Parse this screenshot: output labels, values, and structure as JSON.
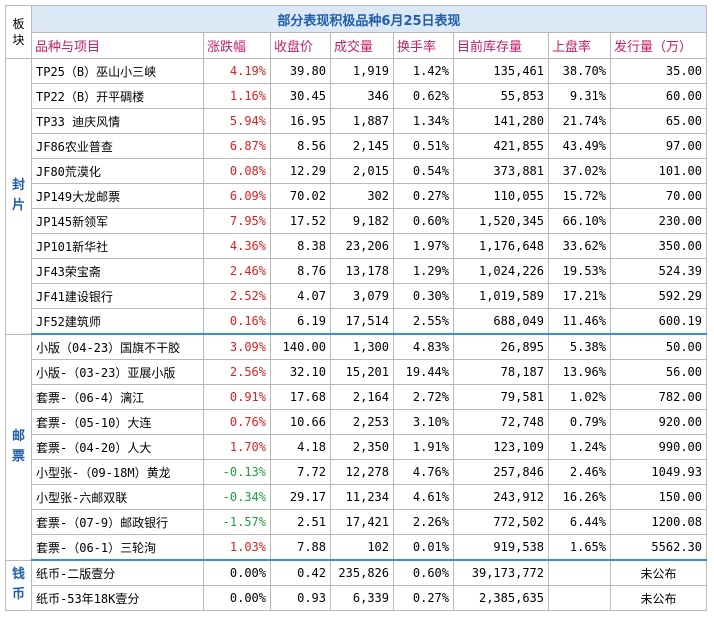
{
  "title": "部分表现积极品种6月25日表现",
  "corner_label": "板块",
  "headers": [
    "品种与项目",
    "涨跌幅",
    "收盘价",
    "成交量",
    "换手率",
    "目前库存量",
    "上盘率",
    "发行量（万）"
  ],
  "colors": {
    "up": "#e02020",
    "down": "#20a040",
    "flat": "#000000",
    "header_text": "#c0206a",
    "title_text": "#1f5fa8",
    "divider": "#3a8fd0"
  },
  "groups": [
    {
      "label": "封片",
      "rows": [
        {
          "name": "TP25（B）巫山小三峡",
          "change": "4.19%",
          "dir": "up",
          "close": "39.80",
          "volume": "1,919",
          "turnover": "1.42%",
          "stock": "135,461",
          "listing_rate": "38.70%",
          "issue": "35.00"
        },
        {
          "name": "TP22（B）开平碉楼",
          "change": "1.16%",
          "dir": "up",
          "close": "30.45",
          "volume": "346",
          "turnover": "0.62%",
          "stock": "55,853",
          "listing_rate": "9.31%",
          "issue": "60.00"
        },
        {
          "name": "TP33 迪庆风情",
          "change": "5.94%",
          "dir": "up",
          "close": "16.95",
          "volume": "1,887",
          "turnover": "1.34%",
          "stock": "141,280",
          "listing_rate": "21.74%",
          "issue": "65.00"
        },
        {
          "name": "JF86农业普查",
          "change": "6.87%",
          "dir": "up",
          "close": "8.56",
          "volume": "2,145",
          "turnover": "0.51%",
          "stock": "421,855",
          "listing_rate": "43.49%",
          "issue": "97.00"
        },
        {
          "name": "JF80荒漠化",
          "change": "0.08%",
          "dir": "up",
          "close": "12.29",
          "volume": "2,015",
          "turnover": "0.54%",
          "stock": "373,881",
          "listing_rate": "37.02%",
          "issue": "101.00"
        },
        {
          "name": "JP149大龙邮票",
          "change": "6.09%",
          "dir": "up",
          "close": "70.02",
          "volume": "302",
          "turnover": "0.27%",
          "stock": "110,055",
          "listing_rate": "15.72%",
          "issue": "70.00"
        },
        {
          "name": "JP145新领军",
          "change": "7.95%",
          "dir": "up",
          "close": "17.52",
          "volume": "9,182",
          "turnover": "0.60%",
          "stock": "1,520,345",
          "listing_rate": "66.10%",
          "issue": "230.00"
        },
        {
          "name": "JP101新华社",
          "change": "4.36%",
          "dir": "up",
          "close": "8.38",
          "volume": "23,206",
          "turnover": "1.97%",
          "stock": "1,176,648",
          "listing_rate": "33.62%",
          "issue": "350.00"
        },
        {
          "name": "JF43荣宝斋",
          "change": "2.46%",
          "dir": "up",
          "close": "8.76",
          "volume": "13,178",
          "turnover": "1.29%",
          "stock": "1,024,226",
          "listing_rate": "19.53%",
          "issue": "524.39"
        },
        {
          "name": "JF41建设银行",
          "change": "2.52%",
          "dir": "up",
          "close": "4.07",
          "volume": "3,079",
          "turnover": "0.30%",
          "stock": "1,019,589",
          "listing_rate": "17.21%",
          "issue": "592.29"
        },
        {
          "name": "JF52建筑师",
          "change": "0.16%",
          "dir": "up",
          "close": "6.19",
          "volume": "17,514",
          "turnover": "2.55%",
          "stock": "688,049",
          "listing_rate": "11.46%",
          "issue": "600.19"
        }
      ]
    },
    {
      "label": "邮票",
      "rows": [
        {
          "name": "小版（04-23）国旗不干胶",
          "change": "3.09%",
          "dir": "up",
          "close": "140.00",
          "volume": "1,300",
          "turnover": "4.83%",
          "stock": "26,895",
          "listing_rate": "5.38%",
          "issue": "50.00"
        },
        {
          "name": "小版-（03-23）亚展小版",
          "change": "2.56%",
          "dir": "up",
          "close": "32.10",
          "volume": "15,201",
          "turnover": "19.44%",
          "stock": "78,187",
          "listing_rate": "13.96%",
          "issue": "56.00"
        },
        {
          "name": "套票-（06-4）漓江",
          "change": "0.91%",
          "dir": "up",
          "close": "17.68",
          "volume": "2,164",
          "turnover": "2.72%",
          "stock": "79,581",
          "listing_rate": "1.02%",
          "issue": "782.00"
        },
        {
          "name": "套票-（05-10）大连",
          "change": "0.76%",
          "dir": "up",
          "close": "10.66",
          "volume": "2,253",
          "turnover": "3.10%",
          "stock": "72,748",
          "listing_rate": "0.79%",
          "issue": "920.00"
        },
        {
          "name": "套票-（04-20）人大",
          "change": "1.70%",
          "dir": "up",
          "close": "4.18",
          "volume": "2,350",
          "turnover": "1.91%",
          "stock": "123,109",
          "listing_rate": "1.24%",
          "issue": "990.00"
        },
        {
          "name": "小型张-（09-18M）黄龙",
          "change": "-0.13%",
          "dir": "down",
          "close": "7.72",
          "volume": "12,278",
          "turnover": "4.76%",
          "stock": "257,846",
          "listing_rate": "2.46%",
          "issue": "1049.93"
        },
        {
          "name": "小型张-六邮双联",
          "change": "-0.34%",
          "dir": "down",
          "close": "29.17",
          "volume": "11,234",
          "turnover": "4.61%",
          "stock": "243,912",
          "listing_rate": "16.26%",
          "issue": "150.00"
        },
        {
          "name": "套票-（07-9）邮政银行",
          "change": "-1.57%",
          "dir": "down",
          "close": "2.51",
          "volume": "17,421",
          "turnover": "2.26%",
          "stock": "772,502",
          "listing_rate": "6.44%",
          "issue": "1200.08"
        },
        {
          "name": "套票-（06-1）三轮洵",
          "change": "1.03%",
          "dir": "up",
          "close": "7.88",
          "volume": "102",
          "turnover": "0.01%",
          "stock": "919,538",
          "listing_rate": "1.65%",
          "issue": "5562.30"
        }
      ]
    },
    {
      "label": "钱币",
      "rows": [
        {
          "name": "纸币-二版壹分",
          "change": "0.00%",
          "dir": "flat",
          "close": "0.42",
          "volume": "235,826",
          "turnover": "0.60%",
          "stock": "39,173,772",
          "listing_rate": "",
          "issue": "未公布"
        },
        {
          "name": "纸币-53年18K壹分",
          "change": "0.00%",
          "dir": "flat",
          "close": "0.93",
          "volume": "6,339",
          "turnover": "0.27%",
          "stock": "2,385,635",
          "listing_rate": "",
          "issue": "未公布"
        }
      ]
    }
  ]
}
